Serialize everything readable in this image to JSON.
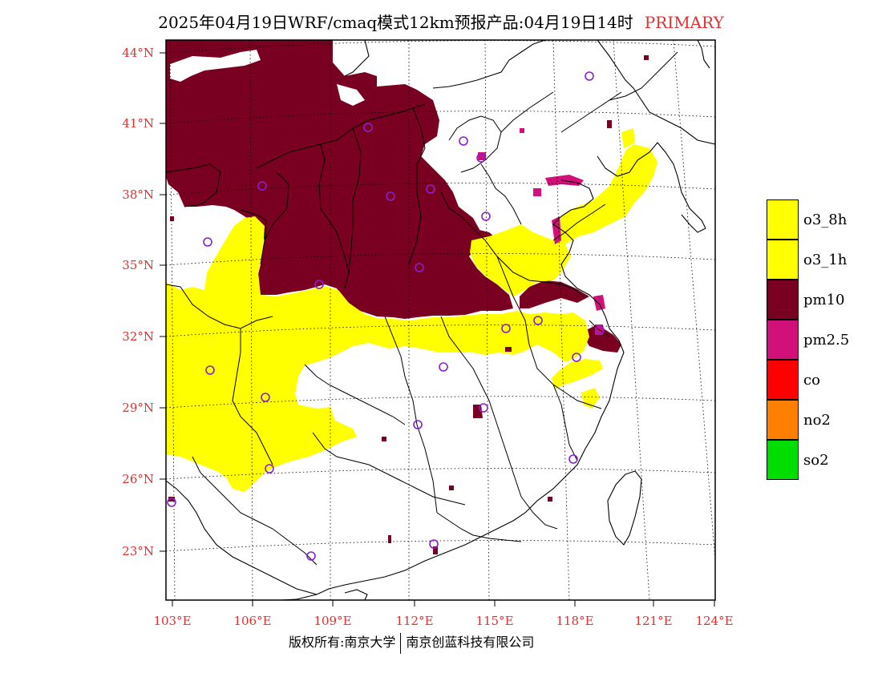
{
  "title": {
    "main": "2025年04月19日WRF/cmaq模式12km预报产品:04月19日14时",
    "tag": "PRIMARY"
  },
  "axes": {
    "lat_labels": [
      "44°N",
      "41°N",
      "38°N",
      "35°N",
      "32°N",
      "29°N",
      "26°N",
      "23°N"
    ],
    "lon_labels": [
      "103°E",
      "106°E",
      "109°E",
      "112°E",
      "115°E",
      "118°E",
      "121°E",
      "124°E"
    ]
  },
  "legend": [
    {
      "label": "o3_8h",
      "color": "#ffff00"
    },
    {
      "label": "o3_1h",
      "color": "#ffff00"
    },
    {
      "label": "pm10",
      "color": "#7a0022"
    },
    {
      "label": "pm2.5",
      "color": "#d2107a"
    },
    {
      "label": "co",
      "color": "#ff0000"
    },
    {
      "label": "no2",
      "color": "#ff8000"
    },
    {
      "label": "so2",
      "color": "#00dd00"
    }
  ],
  "footer": {
    "left": "版权所有:南京大学",
    "right": "南京创蓝科技有限公司"
  },
  "colors": {
    "pm10": "#7a0022",
    "o3": "#ffff00",
    "pm25": "#d2107a",
    "station": "#8b1fcf",
    "axis_text": "#e03030"
  }
}
